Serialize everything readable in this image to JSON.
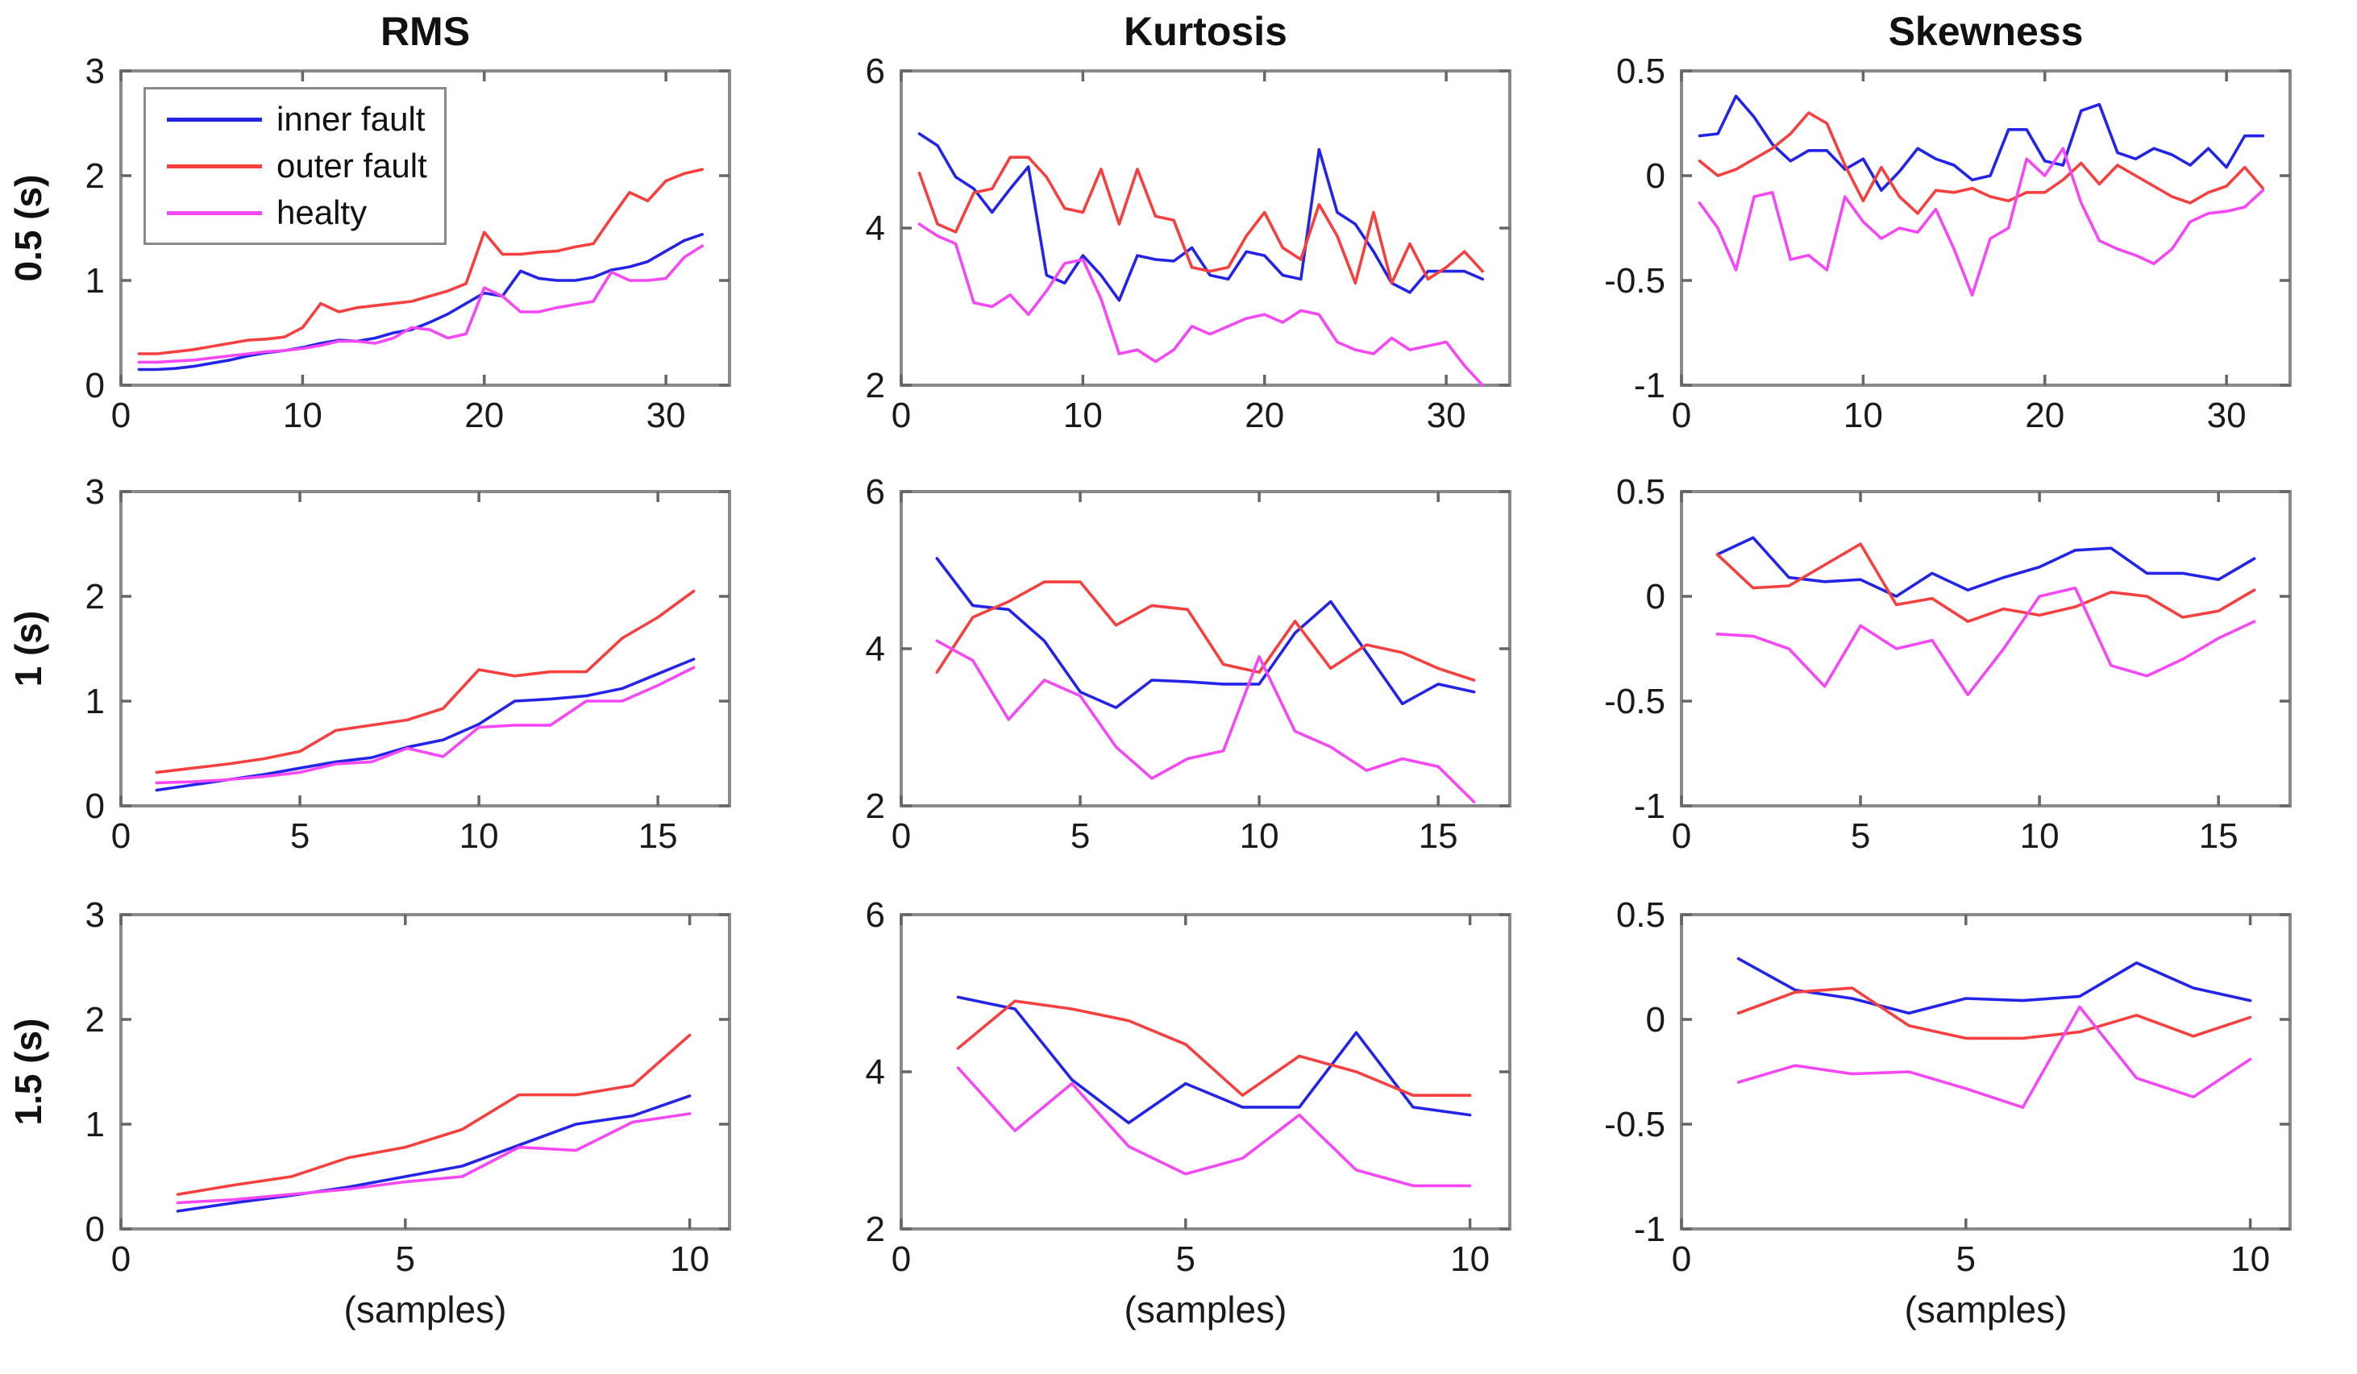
{
  "figure": {
    "titles": [
      "RMS",
      "Kurtosis",
      "Skewness"
    ],
    "row_labels": [
      "0.5 (s)",
      "1 (s)",
      "1.5 (s)"
    ],
    "xlabel": "(samples)",
    "background_color": "#ffffff",
    "axis_box_color": "#8a8a8a",
    "tick_color": "#666666",
    "text_color": "#1a1a1a"
  },
  "legend": {
    "position": "top-left of first subplot",
    "items": [
      {
        "label": "inner fault",
        "color": "#2424e6"
      },
      {
        "label": "outer fault",
        "color": "#f54040"
      },
      {
        "label": "healty",
        "color": "#f548f5"
      }
    ]
  },
  "chart_data": [
    {
      "type": "line",
      "row": 0,
      "col": 0,
      "title": "RMS",
      "row_label": "0.5 (s)",
      "x_rule": "samples 1..n",
      "n_samples": 32,
      "xlim": [
        0,
        33.5
      ],
      "ylim": [
        0,
        3
      ],
      "xticks": [
        0,
        10,
        20,
        30
      ],
      "yticks": [
        0,
        1,
        2,
        3
      ],
      "xtick_labels": [
        "0",
        "10",
        "20",
        "30"
      ],
      "ytick_labels": [
        "0",
        "1",
        "2",
        "3"
      ],
      "grid": false,
      "legend_visible": true,
      "series": [
        {
          "name": "inner fault",
          "color": "#2424e6",
          "values": [
            0.15,
            0.15,
            0.16,
            0.18,
            0.21,
            0.24,
            0.28,
            0.31,
            0.33,
            0.36,
            0.4,
            0.43,
            0.42,
            0.45,
            0.5,
            0.53,
            0.6,
            0.68,
            0.78,
            0.88,
            0.85,
            1.09,
            1.02,
            1.0,
            1.0,
            1.03,
            1.1,
            1.13,
            1.18,
            1.28,
            1.38,
            1.44
          ]
        },
        {
          "name": "outer fault",
          "color": "#f54040",
          "values": [
            0.3,
            0.3,
            0.32,
            0.34,
            0.37,
            0.4,
            0.43,
            0.44,
            0.46,
            0.55,
            0.78,
            0.7,
            0.74,
            0.76,
            0.78,
            0.8,
            0.85,
            0.9,
            0.97,
            1.46,
            1.25,
            1.25,
            1.27,
            1.28,
            1.32,
            1.35,
            1.6,
            1.84,
            1.76,
            1.95,
            2.02,
            2.06
          ]
        },
        {
          "name": "healty",
          "color": "#f548f5",
          "values": [
            0.22,
            0.22,
            0.23,
            0.24,
            0.26,
            0.28,
            0.3,
            0.32,
            0.33,
            0.35,
            0.38,
            0.42,
            0.42,
            0.4,
            0.45,
            0.55,
            0.53,
            0.45,
            0.49,
            0.93,
            0.85,
            0.7,
            0.7,
            0.74,
            0.77,
            0.8,
            1.08,
            1.0,
            1.0,
            1.02,
            1.22,
            1.33
          ]
        }
      ]
    },
    {
      "type": "line",
      "row": 0,
      "col": 1,
      "title": "Kurtosis",
      "row_label": "0.5 (s)",
      "x_rule": "samples 1..n",
      "n_samples": 32,
      "xlim": [
        0,
        33.5
      ],
      "ylim": [
        2,
        6
      ],
      "xticks": [
        0,
        10,
        20,
        30
      ],
      "yticks": [
        2,
        4,
        6
      ],
      "xtick_labels": [
        "0",
        "10",
        "20",
        "30"
      ],
      "ytick_labels": [
        "2",
        "4",
        "6"
      ],
      "grid": false,
      "legend_visible": false,
      "series": [
        {
          "name": "inner fault",
          "color": "#2424e6",
          "values": [
            5.2,
            5.05,
            4.65,
            4.5,
            4.2,
            4.5,
            4.78,
            3.4,
            3.3,
            3.65,
            3.4,
            3.08,
            3.65,
            3.6,
            3.58,
            3.75,
            3.4,
            3.35,
            3.7,
            3.65,
            3.4,
            3.35,
            5.0,
            4.2,
            4.05,
            3.7,
            3.3,
            3.18,
            3.45,
            3.45,
            3.45,
            3.35
          ]
        },
        {
          "name": "outer fault",
          "color": "#f54040",
          "values": [
            4.7,
            4.05,
            3.95,
            4.45,
            4.5,
            4.9,
            4.9,
            4.65,
            4.25,
            4.2,
            4.75,
            4.05,
            4.75,
            4.15,
            4.1,
            3.5,
            3.45,
            3.5,
            3.9,
            4.2,
            3.75,
            3.6,
            4.3,
            3.9,
            3.3,
            4.2,
            3.3,
            3.8,
            3.35,
            3.5,
            3.7,
            3.45
          ]
        },
        {
          "name": "healty",
          "color": "#f548f5",
          "values": [
            4.05,
            3.9,
            3.8,
            3.05,
            3.0,
            3.15,
            2.9,
            3.2,
            3.55,
            3.6,
            3.1,
            2.4,
            2.45,
            2.3,
            2.45,
            2.75,
            2.65,
            2.75,
            2.85,
            2.9,
            2.8,
            2.95,
            2.9,
            2.55,
            2.45,
            2.4,
            2.6,
            2.45,
            2.5,
            2.55,
            2.25,
            2.0
          ]
        }
      ]
    },
    {
      "type": "line",
      "row": 0,
      "col": 2,
      "title": "Skewness",
      "row_label": "0.5 (s)",
      "x_rule": "samples 1..n",
      "n_samples": 32,
      "xlim": [
        0,
        33.5
      ],
      "ylim": [
        -1,
        0.5
      ],
      "xticks": [
        0,
        10,
        20,
        30
      ],
      "yticks": [
        -1,
        -0.5,
        0,
        0.5
      ],
      "xtick_labels": [
        "0",
        "10",
        "20",
        "30"
      ],
      "ytick_labels": [
        "-1",
        "-0.5",
        "0",
        "0.5"
      ],
      "grid": false,
      "legend_visible": false,
      "series": [
        {
          "name": "inner fault",
          "color": "#2424e6",
          "values": [
            0.19,
            0.2,
            0.38,
            0.28,
            0.15,
            0.07,
            0.12,
            0.12,
            0.03,
            0.08,
            -0.07,
            0.02,
            0.13,
            0.08,
            0.05,
            -0.02,
            0.0,
            0.22,
            0.22,
            0.07,
            0.05,
            0.31,
            0.34,
            0.11,
            0.08,
            0.13,
            0.1,
            0.05,
            0.13,
            0.04,
            0.19,
            0.19
          ]
        },
        {
          "name": "outer fault",
          "color": "#f54040",
          "values": [
            0.07,
            0.0,
            0.03,
            0.08,
            0.13,
            0.2,
            0.3,
            0.25,
            0.05,
            -0.12,
            0.04,
            -0.1,
            -0.18,
            -0.07,
            -0.08,
            -0.06,
            -0.1,
            -0.12,
            -0.08,
            -0.08,
            -0.02,
            0.06,
            -0.04,
            0.05,
            0.0,
            -0.05,
            -0.1,
            -0.13,
            -0.08,
            -0.05,
            0.04,
            -0.06
          ]
        },
        {
          "name": "healty",
          "color": "#f548f5",
          "values": [
            -0.13,
            -0.25,
            -0.45,
            -0.1,
            -0.08,
            -0.4,
            -0.38,
            -0.45,
            -0.1,
            -0.22,
            -0.3,
            -0.25,
            -0.27,
            -0.16,
            -0.35,
            -0.57,
            -0.3,
            -0.25,
            0.08,
            0.0,
            0.13,
            -0.13,
            -0.31,
            -0.35,
            -0.38,
            -0.42,
            -0.35,
            -0.22,
            -0.18,
            -0.17,
            -0.15,
            -0.07
          ]
        }
      ]
    },
    {
      "type": "line",
      "row": 1,
      "col": 0,
      "title": "RMS",
      "row_label": "1 (s)",
      "x_rule": "samples 1..n",
      "n_samples": 16,
      "xlim": [
        0,
        17
      ],
      "ylim": [
        0,
        3
      ],
      "xticks": [
        0,
        5,
        10,
        15
      ],
      "yticks": [
        0,
        1,
        2,
        3
      ],
      "xtick_labels": [
        "0",
        "5",
        "10",
        "15"
      ],
      "ytick_labels": [
        "0",
        "1",
        "2",
        "3"
      ],
      "grid": false,
      "legend_visible": false,
      "series": [
        {
          "name": "inner fault",
          "color": "#2424e6",
          "values": [
            0.15,
            0.2,
            0.25,
            0.3,
            0.36,
            0.42,
            0.46,
            0.56,
            0.63,
            0.78,
            1.0,
            1.02,
            1.05,
            1.12,
            1.26,
            1.4
          ]
        },
        {
          "name": "outer fault",
          "color": "#f54040",
          "values": [
            0.32,
            0.36,
            0.4,
            0.45,
            0.52,
            0.72,
            0.77,
            0.82,
            0.93,
            1.3,
            1.24,
            1.28,
            1.28,
            1.6,
            1.8,
            2.05
          ]
        },
        {
          "name": "healty",
          "color": "#f548f5",
          "values": [
            0.22,
            0.23,
            0.25,
            0.28,
            0.32,
            0.4,
            0.42,
            0.55,
            0.47,
            0.75,
            0.77,
            0.77,
            1.0,
            1.0,
            1.15,
            1.32
          ]
        }
      ]
    },
    {
      "type": "line",
      "row": 1,
      "col": 1,
      "title": "Kurtosis",
      "row_label": "1 (s)",
      "x_rule": "samples 1..n",
      "n_samples": 16,
      "xlim": [
        0,
        17
      ],
      "ylim": [
        2,
        6
      ],
      "xticks": [
        0,
        5,
        10,
        15
      ],
      "yticks": [
        2,
        4,
        6
      ],
      "xtick_labels": [
        "0",
        "5",
        "10",
        "15"
      ],
      "ytick_labels": [
        "2",
        "4",
        "6"
      ],
      "grid": false,
      "legend_visible": false,
      "series": [
        {
          "name": "inner fault",
          "color": "#2424e6",
          "values": [
            5.15,
            4.55,
            4.5,
            4.1,
            3.45,
            3.25,
            3.6,
            3.58,
            3.55,
            3.55,
            4.2,
            4.6,
            3.95,
            3.3,
            3.55,
            3.45
          ]
        },
        {
          "name": "outer fault",
          "color": "#f54040",
          "values": [
            3.7,
            4.4,
            4.6,
            4.85,
            4.85,
            4.3,
            4.55,
            4.5,
            3.8,
            3.7,
            4.35,
            3.75,
            4.05,
            3.95,
            3.75,
            3.6
          ]
        },
        {
          "name": "healty",
          "color": "#f548f5",
          "values": [
            4.1,
            3.85,
            3.1,
            3.6,
            3.4,
            2.75,
            2.35,
            2.6,
            2.7,
            3.9,
            2.95,
            2.75,
            2.45,
            2.6,
            2.5,
            2.05
          ]
        }
      ]
    },
    {
      "type": "line",
      "row": 1,
      "col": 2,
      "title": "Skewness",
      "row_label": "1 (s)",
      "x_rule": "samples 1..n",
      "n_samples": 16,
      "xlim": [
        0,
        17
      ],
      "ylim": [
        -1,
        0.5
      ],
      "xticks": [
        0,
        5,
        10,
        15
      ],
      "yticks": [
        -1,
        -0.5,
        0,
        0.5
      ],
      "xtick_labels": [
        "0",
        "5",
        "10",
        "15"
      ],
      "ytick_labels": [
        "-1",
        "-0.5",
        "0",
        "0.5"
      ],
      "grid": false,
      "legend_visible": false,
      "series": [
        {
          "name": "inner fault",
          "color": "#2424e6",
          "values": [
            0.2,
            0.28,
            0.09,
            0.07,
            0.08,
            0.0,
            0.11,
            0.03,
            0.09,
            0.14,
            0.22,
            0.23,
            0.11,
            0.11,
            0.08,
            0.18
          ]
        },
        {
          "name": "outer fault",
          "color": "#f54040",
          "values": [
            0.2,
            0.04,
            0.05,
            0.15,
            0.25,
            -0.04,
            -0.01,
            -0.12,
            -0.06,
            -0.09,
            -0.05,
            0.02,
            0.0,
            -0.1,
            -0.07,
            0.03
          ]
        },
        {
          "name": "healty",
          "color": "#f548f5",
          "values": [
            -0.18,
            -0.19,
            -0.25,
            -0.43,
            -0.14,
            -0.25,
            -0.21,
            -0.47,
            -0.25,
            0.0,
            0.04,
            -0.33,
            -0.38,
            -0.3,
            -0.2,
            -0.12
          ]
        }
      ]
    },
    {
      "type": "line",
      "row": 2,
      "col": 0,
      "title": "RMS",
      "row_label": "1.5 (s)",
      "x_rule": "samples 1..n",
      "n_samples": 10,
      "xlim": [
        0,
        10.7
      ],
      "ylim": [
        0,
        3
      ],
      "xticks": [
        0,
        5,
        10
      ],
      "yticks": [
        0,
        1,
        2,
        3
      ],
      "xtick_labels": [
        "0",
        "5",
        "10"
      ],
      "ytick_labels": [
        "0",
        "1",
        "2",
        "3"
      ],
      "grid": false,
      "legend_visible": false,
      "xlabel_visible": true,
      "series": [
        {
          "name": "inner fault",
          "color": "#2424e6",
          "values": [
            0.17,
            0.25,
            0.32,
            0.4,
            0.5,
            0.6,
            0.8,
            1.0,
            1.08,
            1.27
          ]
        },
        {
          "name": "outer fault",
          "color": "#f54040",
          "values": [
            0.33,
            0.42,
            0.5,
            0.68,
            0.78,
            0.95,
            1.28,
            1.28,
            1.37,
            1.85
          ]
        },
        {
          "name": "healty",
          "color": "#f548f5",
          "values": [
            0.25,
            0.28,
            0.33,
            0.38,
            0.45,
            0.5,
            0.78,
            0.75,
            1.02,
            1.1
          ]
        }
      ]
    },
    {
      "type": "line",
      "row": 2,
      "col": 1,
      "title": "Kurtosis",
      "row_label": "1.5 (s)",
      "x_rule": "samples 1..n",
      "n_samples": 10,
      "xlim": [
        0,
        10.7
      ],
      "ylim": [
        2,
        6
      ],
      "xticks": [
        0,
        5,
        10
      ],
      "yticks": [
        2,
        4,
        6
      ],
      "xtick_labels": [
        "0",
        "5",
        "10"
      ],
      "ytick_labels": [
        "2",
        "4",
        "6"
      ],
      "grid": false,
      "legend_visible": false,
      "xlabel_visible": true,
      "series": [
        {
          "name": "inner fault",
          "color": "#2424e6",
          "values": [
            4.95,
            4.8,
            3.9,
            3.35,
            3.85,
            3.55,
            3.55,
            4.5,
            3.55,
            3.45
          ]
        },
        {
          "name": "outer fault",
          "color": "#f54040",
          "values": [
            4.3,
            4.9,
            4.8,
            4.65,
            4.35,
            3.7,
            4.2,
            4.0,
            3.7,
            3.7
          ]
        },
        {
          "name": "healty",
          "color": "#f548f5",
          "values": [
            4.05,
            3.25,
            3.85,
            3.05,
            2.7,
            2.9,
            3.45,
            2.75,
            2.55,
            2.55
          ]
        }
      ]
    },
    {
      "type": "line",
      "row": 2,
      "col": 2,
      "title": "Skewness",
      "row_label": "1.5 (s)",
      "x_rule": "samples 1..n",
      "n_samples": 10,
      "xlim": [
        0,
        10.7
      ],
      "ylim": [
        -1,
        0.5
      ],
      "xticks": [
        0,
        5,
        10
      ],
      "yticks": [
        -1,
        -0.5,
        0,
        0.5
      ],
      "xtick_labels": [
        "0",
        "5",
        "10"
      ],
      "ytick_labels": [
        "-1",
        "-0.5",
        "0",
        "0.5"
      ],
      "grid": false,
      "legend_visible": false,
      "xlabel_visible": true,
      "series": [
        {
          "name": "inner fault",
          "color": "#2424e6",
          "values": [
            0.29,
            0.14,
            0.1,
            0.03,
            0.1,
            0.09,
            0.11,
            0.27,
            0.15,
            0.09
          ]
        },
        {
          "name": "outer fault",
          "color": "#f54040",
          "values": [
            0.03,
            0.13,
            0.15,
            -0.03,
            -0.09,
            -0.09,
            -0.06,
            0.02,
            -0.08,
            0.01
          ]
        },
        {
          "name": "healty",
          "color": "#f548f5",
          "values": [
            -0.3,
            -0.22,
            -0.26,
            -0.25,
            -0.33,
            -0.42,
            0.06,
            -0.28,
            -0.37,
            -0.19
          ]
        }
      ]
    }
  ]
}
